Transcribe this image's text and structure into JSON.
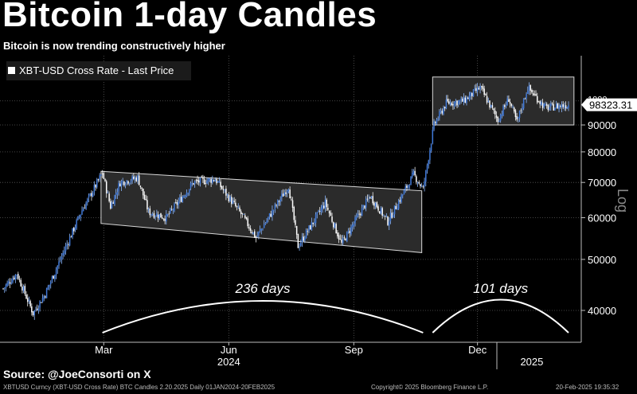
{
  "header": {
    "title": "Bitcoin 1-day Candles",
    "subtitle": "Bitcoin is now trending constructively higher"
  },
  "source": "Source: @JoeConsorti on X",
  "footer": {
    "left": "XBTUSD Curncy (XBT-USD Cross Rate) BTC Candles 2.20.2025  Daily 01JAN2024-20FEB2025",
    "center": "Copyright© 2025 Bloomberg Finance L.P.",
    "right": "20-Feb-2025 19:35:32"
  },
  "chart_data": {
    "type": "candlestick",
    "legend": "XBT-USD Cross Rate - Last Price",
    "y_scale": "log",
    "y_axis_label": "Log",
    "ylim": [
      35000,
      125000
    ],
    "y_ticks": [
      40000,
      50000,
      60000,
      70000,
      80000,
      90000
    ],
    "y_tick_labels": [
      "40000",
      "50000",
      "60000",
      "70000",
      "80000",
      "90000"
    ],
    "partial_tick_label": "1000",
    "x_range": [
      "2024-01-01",
      "2025-02-20"
    ],
    "x_ticks": [
      {
        "date": "2024-03-15",
        "label": "Mar"
      },
      {
        "date": "2024-06-15",
        "label": "Jun"
      },
      {
        "date": "2024-09-15",
        "label": "Sep"
      },
      {
        "date": "2024-12-15",
        "label": "Dec"
      }
    ],
    "year_labels": [
      {
        "date": "2024-06-15",
        "label": "2024"
      },
      {
        "date": "2025-01-24",
        "label": "2025"
      }
    ],
    "last_price": 98323.31,
    "last_price_label": "98323.31",
    "price_path": [
      [
        "2024-01-01",
        44000
      ],
      [
        "2024-01-11",
        47000
      ],
      [
        "2024-01-23",
        39500
      ],
      [
        "2024-02-01",
        43000
      ],
      [
        "2024-02-15",
        52000
      ],
      [
        "2024-02-28",
        62000
      ],
      [
        "2024-03-05",
        66000
      ],
      [
        "2024-03-14",
        73000
      ],
      [
        "2024-03-20",
        63000
      ],
      [
        "2024-03-27",
        70000
      ],
      [
        "2024-04-09",
        71500
      ],
      [
        "2024-04-17",
        61500
      ],
      [
        "2024-04-30",
        60000
      ],
      [
        "2024-05-20",
        70000
      ],
      [
        "2024-06-05",
        71000
      ],
      [
        "2024-06-25",
        60500
      ],
      [
        "2024-07-05",
        55000
      ],
      [
        "2024-07-29",
        69000
      ],
      [
        "2024-08-05",
        53000
      ],
      [
        "2024-08-25",
        64000
      ],
      [
        "2024-09-06",
        53500
      ],
      [
        "2024-09-27",
        66000
      ],
      [
        "2024-10-10",
        59000
      ],
      [
        "2024-10-29",
        72500
      ],
      [
        "2024-11-05",
        68000
      ],
      [
        "2024-11-13",
        90000
      ],
      [
        "2024-11-22",
        99000
      ],
      [
        "2024-12-05",
        100000
      ],
      [
        "2024-12-17",
        106000
      ],
      [
        "2024-12-30",
        92000
      ],
      [
        "2025-01-07",
        101000
      ],
      [
        "2025-01-13",
        91000
      ],
      [
        "2025-01-21",
        106000
      ],
      [
        "2025-02-03",
        97000
      ],
      [
        "2025-02-20",
        98300
      ]
    ],
    "channels": [
      {
        "start": "2024-03-13",
        "end": "2024-11-04",
        "upper": [
          73500,
          67500
        ],
        "lower": [
          58500,
          51500
        ]
      },
      {
        "start": "2024-11-12",
        "end": "2025-02-24",
        "upper": [
          111000,
          111000
        ],
        "lower": [
          90000,
          90000
        ]
      }
    ],
    "annotations": [
      {
        "label": "236 days",
        "start": "2024-03-14",
        "end": "2024-11-05"
      },
      {
        "label": "101 days",
        "start": "2024-11-12",
        "end": "2025-02-20"
      }
    ]
  }
}
